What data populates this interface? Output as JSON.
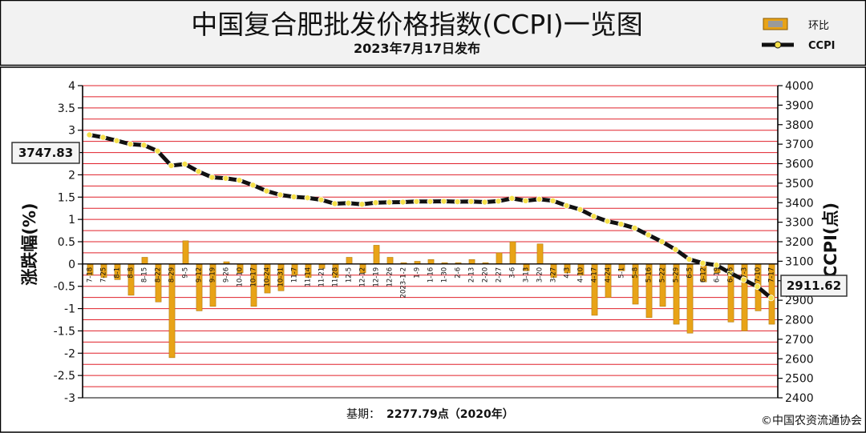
{
  "header": {
    "title": "中国复合肥批发价格指数(CCPI)一览图",
    "subtitle": "2023年7月17日发布"
  },
  "footer": {
    "base_label": "基期：",
    "base_value": "2277.79点（2020年）",
    "copyright": "©中国农资流通协会"
  },
  "callouts": {
    "start": "3747.83",
    "end": "2911.62"
  },
  "colors": {
    "bar": "#E8A317",
    "bar_dark": "#B07A10",
    "line": "#111111",
    "marker": "#F5E04A",
    "grid": "#E0202A",
    "header_bg": "#F2F2F2"
  },
  "chart_data": {
    "type": "bar+line",
    "categories": [
      "7-18",
      "7-25",
      "8-1",
      "8-8",
      "8-15",
      "8-22",
      "8-29",
      "9-5",
      "9-12",
      "9-19",
      "9-26",
      "10-10",
      "10-17",
      "10-24",
      "10-31",
      "11-7",
      "11-14",
      "11-21",
      "11-28",
      "12-5",
      "12-12",
      "12-19",
      "12-26",
      "2023-1-2",
      "1-9",
      "1-16",
      "1-30",
      "2-6",
      "2-13",
      "2-20",
      "2-27",
      "3-6",
      "3-13",
      "3-20",
      "3-27",
      "4-3",
      "4-10",
      "4-17",
      "4-24",
      "5-1",
      "5-8",
      "5-16",
      "5-22",
      "5-29",
      "6-5",
      "6-12",
      "6-19",
      "6-26",
      "7-3",
      "7-10",
      "7-17"
    ],
    "series": [
      {
        "name": "环比",
        "axis": "left",
        "kind": "bar",
        "values": [
          -0.25,
          -0.3,
          -0.35,
          -0.7,
          0.15,
          -0.85,
          -2.1,
          0.52,
          -1.05,
          -0.95,
          0.05,
          -0.2,
          -0.95,
          -0.65,
          -0.6,
          -0.25,
          -0.3,
          -0.1,
          -0.3,
          0.15,
          -0.2,
          0.42,
          0.15,
          0.03,
          0.06,
          0.1,
          0.03,
          0.03,
          0.1,
          0.03,
          0.25,
          0.5,
          -0.15,
          0.45,
          -0.3,
          -0.2,
          -0.25,
          -1.15,
          -0.75,
          -0.15,
          -0.9,
          -1.2,
          -0.95,
          -1.35,
          -1.55,
          -0.4,
          -0.2,
          -1.3,
          -1.5,
          -1.05,
          -1.35
        ]
      },
      {
        "name": "CCPI",
        "axis": "right",
        "kind": "line",
        "values": [
          3747.83,
          3735,
          3718,
          3700,
          3695,
          3665,
          3590,
          3598,
          3560,
          3530,
          3525,
          3515,
          3490,
          3460,
          3440,
          3430,
          3425,
          3415,
          3395,
          3398,
          3392,
          3400,
          3402,
          3403,
          3406,
          3406,
          3407,
          3405,
          3406,
          3403,
          3408,
          3422,
          3410,
          3418,
          3410,
          3385,
          3365,
          3330,
          3305,
          3290,
          3270,
          3235,
          3200,
          3160,
          3110,
          3090,
          3080,
          3040,
          3005,
          2970,
          2911.62
        ]
      }
    ],
    "ylabel_left": "涨跌幅(%)",
    "ylabel_right": "CCPI(点)",
    "ylim_left": [
      -3,
      4
    ],
    "ylim_right": [
      2400,
      4000
    ],
    "yticks_left": [
      "-3",
      "-2.5",
      "-2",
      "-1.5",
      "-1",
      "-0.5",
      "0",
      "0.5",
      "1",
      "1.5",
      "2",
      "2.5",
      "3",
      "3.5",
      "4"
    ],
    "yticks_right": [
      "2400",
      "2500",
      "2600",
      "2700",
      "2800",
      "2900",
      "3000",
      "3100",
      "3200",
      "3300",
      "3400",
      "3500",
      "3600",
      "3700",
      "3800",
      "3900",
      "4000"
    ],
    "grid": true,
    "legend_position": "top-right"
  }
}
